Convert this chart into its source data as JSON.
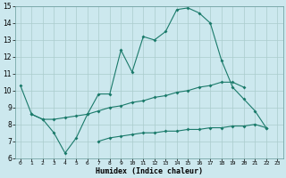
{
  "xlabel": "Humidex (Indice chaleur)",
  "xlim": [
    -0.5,
    23.5
  ],
  "ylim": [
    6,
    15
  ],
  "xticks": [
    0,
    1,
    2,
    3,
    4,
    5,
    6,
    7,
    8,
    9,
    10,
    11,
    12,
    13,
    14,
    15,
    16,
    17,
    18,
    19,
    20,
    21,
    22,
    23
  ],
  "yticks": [
    6,
    7,
    8,
    9,
    10,
    11,
    12,
    13,
    14,
    15
  ],
  "bg_color": "#cce8ee",
  "grid_color": "#aacccc",
  "line_color": "#1a7a6a",
  "line1_x": [
    0,
    1,
    2,
    3,
    4,
    5,
    6,
    7,
    8,
    9,
    10,
    11,
    12,
    13,
    14,
    15,
    16,
    17,
    18,
    19,
    20,
    21,
    22
  ],
  "line1_y": [
    10.3,
    8.6,
    8.3,
    7.5,
    6.3,
    7.2,
    8.6,
    9.8,
    9.8,
    12.4,
    11.1,
    13.2,
    13.0,
    13.5,
    14.8,
    14.9,
    14.6,
    14.0,
    11.8,
    10.2,
    9.5,
    8.8,
    7.8
  ],
  "line2_x": [
    1,
    2,
    3,
    4,
    5,
    6,
    7,
    8,
    9,
    10,
    11,
    12,
    13,
    14,
    15,
    16,
    17,
    18,
    19,
    20
  ],
  "line2_y": [
    8.6,
    8.3,
    8.3,
    8.4,
    8.5,
    8.6,
    8.8,
    9.0,
    9.1,
    9.3,
    9.4,
    9.6,
    9.7,
    9.9,
    10.0,
    10.2,
    10.3,
    10.5,
    10.5,
    10.2
  ],
  "line3_x": [
    7,
    8,
    9,
    10,
    11,
    12,
    13,
    14,
    15,
    16,
    17,
    18,
    19,
    20,
    21,
    22
  ],
  "line3_y": [
    7.0,
    7.2,
    7.3,
    7.4,
    7.5,
    7.5,
    7.6,
    7.6,
    7.7,
    7.7,
    7.8,
    7.8,
    7.9,
    7.9,
    8.0,
    7.8
  ]
}
